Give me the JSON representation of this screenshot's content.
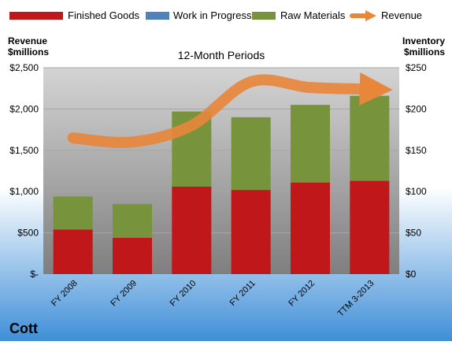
{
  "company": "Cott",
  "legend": {
    "finished_goods": "Finished Goods",
    "work_in_progress": "Work in Progress",
    "raw_materials": "Raw Materials",
    "revenue": "Revenue"
  },
  "axes": {
    "left_title_line1": "Revenue",
    "left_title_line2": "$millions",
    "right_title_line1": "Inventory",
    "right_title_line2": "$millions"
  },
  "colors": {
    "finished_goods": "#C0171B",
    "work_in_progress": "#4F81BD",
    "raw_materials": "#77933C",
    "revenue": "#E8863A",
    "plot_top": "#D4D4D4",
    "plot_bottom": "#7F7F7F",
    "bg_top": "#FFFFFF",
    "bg_bottom": "#3F8FD8"
  },
  "chart_data": {
    "type": "bar",
    "title": "12-Month Periods",
    "categories": [
      "FY 2008",
      "FY 2009",
      "FY 2010",
      "FY 2011",
      "FY 2012",
      "TTM 3-2013"
    ],
    "left_axis": {
      "label": "Revenue $millions",
      "ylim": [
        0,
        2500
      ],
      "ticks": [
        "$-",
        "$500",
        "$1,000",
        "$1,500",
        "$2,000",
        "$2,500"
      ],
      "tick_values": [
        0,
        500,
        1000,
        1500,
        2000,
        2500
      ]
    },
    "right_axis": {
      "label": "Inventory $millions",
      "ylim": [
        0,
        250
      ],
      "ticks": [
        "$0",
        "$50",
        "$100",
        "$150",
        "$200",
        "$250"
      ],
      "tick_values": [
        0,
        50,
        100,
        150,
        200,
        250
      ]
    },
    "series": [
      {
        "name": "Finished Goods",
        "type": "stacked-bar",
        "axis": "right",
        "values": [
          54,
          44,
          106,
          102,
          111,
          113
        ]
      },
      {
        "name": "Work in Progress",
        "type": "stacked-bar",
        "axis": "right",
        "values": [
          0,
          0,
          0,
          0,
          0,
          0
        ]
      },
      {
        "name": "Raw Materials",
        "type": "stacked-bar",
        "axis": "right",
        "values": [
          40,
          41,
          91,
          88,
          94,
          103
        ]
      },
      {
        "name": "Revenue",
        "type": "line",
        "axis": "left",
        "values": [
          1650,
          1600,
          1800,
          2330,
          2260,
          2240
        ]
      }
    ],
    "grid": true,
    "legend_position": "top"
  }
}
